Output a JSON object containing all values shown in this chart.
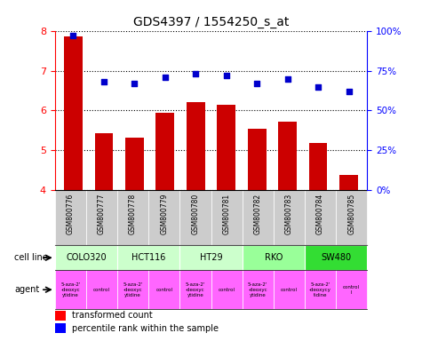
{
  "title": "GDS4397 / 1554250_s_at",
  "samples": [
    "GSM800776",
    "GSM800777",
    "GSM800778",
    "GSM800779",
    "GSM800780",
    "GSM800781",
    "GSM800782",
    "GSM800783",
    "GSM800784",
    "GSM800785"
  ],
  "bar_values": [
    7.85,
    5.43,
    5.32,
    5.94,
    6.22,
    6.15,
    5.55,
    5.73,
    5.19,
    4.38
  ],
  "percentile_values": [
    97,
    68,
    67,
    71,
    73,
    72,
    67,
    70,
    65,
    62
  ],
  "ylim": [
    4,
    8
  ],
  "y2lim": [
    0,
    100
  ],
  "bar_color": "#cc0000",
  "dot_color": "#0000cc",
  "cell_lines": [
    {
      "label": "COLO320",
      "start": 0,
      "end": 2,
      "color": "#ccffcc"
    },
    {
      "label": "HCT116",
      "start": 2,
      "end": 4,
      "color": "#ccffcc"
    },
    {
      "label": "HT29",
      "start": 4,
      "end": 6,
      "color": "#ccffcc"
    },
    {
      "label": "RKO",
      "start": 6,
      "end": 8,
      "color": "#99ff99"
    },
    {
      "label": "SW480",
      "start": 8,
      "end": 10,
      "color": "#33dd33"
    }
  ],
  "agent_labels": [
    "5-aza-2'\n-deoxyc\nytidine",
    "control",
    "5-aza-2'\n-deoxyc\nytidine",
    "control",
    "5-aza-2'\n-deoxyc\nytidine",
    "control",
    "5-aza-2'\n-deoxyc\nytidine",
    "control",
    "5-aza-2'\n-deoxycy\ntidine",
    "control\nl"
  ],
  "agent_color": "#ff66ff",
  "sample_bg_color": "#cccccc",
  "yticks": [
    4,
    5,
    6,
    7,
    8
  ],
  "y2ticks": [
    0,
    25,
    50,
    75,
    100
  ],
  "y2ticklabels": [
    "0%",
    "25%",
    "50%",
    "75%",
    "100%"
  ],
  "legend_red": "transformed count",
  "legend_blue": "percentile rank within the sample"
}
